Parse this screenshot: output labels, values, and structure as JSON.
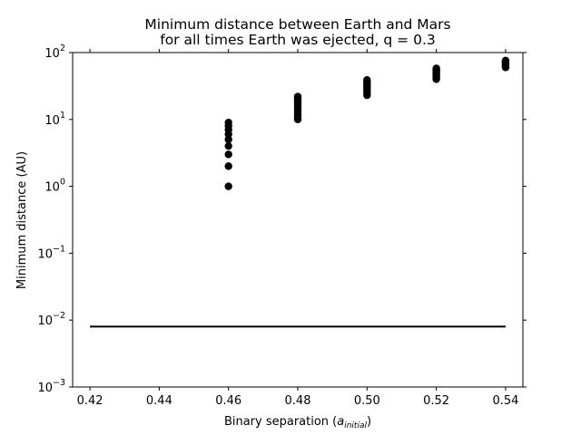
{
  "chart_data": {
    "type": "scatter",
    "title_line1": "Minimum distance between Earth and Mars",
    "title_line2": "for all times Earth was ejected, q = 0.3",
    "xlabel_main": "Binary separation (",
    "xlabel_italic": "a",
    "xlabel_sub": "initial",
    "xlabel_close": ")",
    "ylabel": "Minimum distance (AU)",
    "xlim": [
      0.415,
      0.545
    ],
    "ylim": [
      0.001,
      100
    ],
    "yscale": "log",
    "xticks": [
      0.42,
      0.44,
      0.46,
      0.48,
      0.5,
      0.52,
      0.54
    ],
    "xtick_labels": [
      "0.42",
      "0.44",
      "0.46",
      "0.48",
      "0.50",
      "0.52",
      "0.54"
    ],
    "yticks": [
      0.001,
      0.01,
      0.1,
      1,
      10,
      100
    ],
    "ytick_labels": [
      {
        "base": "10",
        "exp": "−3"
      },
      {
        "base": "10",
        "exp": "−2"
      },
      {
        "base": "10",
        "exp": "−1"
      },
      {
        "base": "10",
        "exp": "0"
      },
      {
        "base": "10",
        "exp": "1"
      },
      {
        "base": "10",
        "exp": "2"
      }
    ],
    "grid": false,
    "marker_color": "#000000",
    "points": [
      {
        "x": 0.46,
        "y": 1.0
      },
      {
        "x": 0.46,
        "y": 2.0
      },
      {
        "x": 0.46,
        "y": 3.0
      },
      {
        "x": 0.46,
        "y": 4.0
      },
      {
        "x": 0.46,
        "y": 5.0
      },
      {
        "x": 0.46,
        "y": 6.0
      },
      {
        "x": 0.46,
        "y": 7.0
      },
      {
        "x": 0.46,
        "y": 8.0
      },
      {
        "x": 0.46,
        "y": 9.0
      },
      {
        "x": 0.48,
        "y": 10.0
      },
      {
        "x": 0.48,
        "y": 11.0
      },
      {
        "x": 0.48,
        "y": 12.0
      },
      {
        "x": 0.48,
        "y": 13.0
      },
      {
        "x": 0.48,
        "y": 14.0
      },
      {
        "x": 0.48,
        "y": 15.0
      },
      {
        "x": 0.48,
        "y": 16.0
      },
      {
        "x": 0.48,
        "y": 17.0
      },
      {
        "x": 0.48,
        "y": 18.0
      },
      {
        "x": 0.48,
        "y": 19.0
      },
      {
        "x": 0.48,
        "y": 20.0
      },
      {
        "x": 0.48,
        "y": 21.0
      },
      {
        "x": 0.48,
        "y": 22.0
      },
      {
        "x": 0.5,
        "y": 23.0
      },
      {
        "x": 0.5,
        "y": 25.0
      },
      {
        "x": 0.5,
        "y": 27.0
      },
      {
        "x": 0.5,
        "y": 29.0
      },
      {
        "x": 0.5,
        "y": 31.0
      },
      {
        "x": 0.5,
        "y": 33.0
      },
      {
        "x": 0.5,
        "y": 35.0
      },
      {
        "x": 0.5,
        "y": 37.0
      },
      {
        "x": 0.5,
        "y": 39.0
      },
      {
        "x": 0.52,
        "y": 40.0
      },
      {
        "x": 0.52,
        "y": 42.0
      },
      {
        "x": 0.52,
        "y": 44.0
      },
      {
        "x": 0.52,
        "y": 46.0
      },
      {
        "x": 0.52,
        "y": 48.0
      },
      {
        "x": 0.52,
        "y": 50.0
      },
      {
        "x": 0.52,
        "y": 52.0
      },
      {
        "x": 0.52,
        "y": 54.0
      },
      {
        "x": 0.52,
        "y": 56.0
      },
      {
        "x": 0.52,
        "y": 58.0
      },
      {
        "x": 0.54,
        "y": 60.0
      },
      {
        "x": 0.54,
        "y": 62.0
      },
      {
        "x": 0.54,
        "y": 64.0
      },
      {
        "x": 0.54,
        "y": 66.0
      },
      {
        "x": 0.54,
        "y": 68.0
      },
      {
        "x": 0.54,
        "y": 70.0
      },
      {
        "x": 0.54,
        "y": 72.0
      },
      {
        "x": 0.54,
        "y": 74.0
      },
      {
        "x": 0.54,
        "y": 76.0
      }
    ],
    "reference_line": {
      "x": [
        0.42,
        0.54
      ],
      "y": 0.008
    }
  }
}
